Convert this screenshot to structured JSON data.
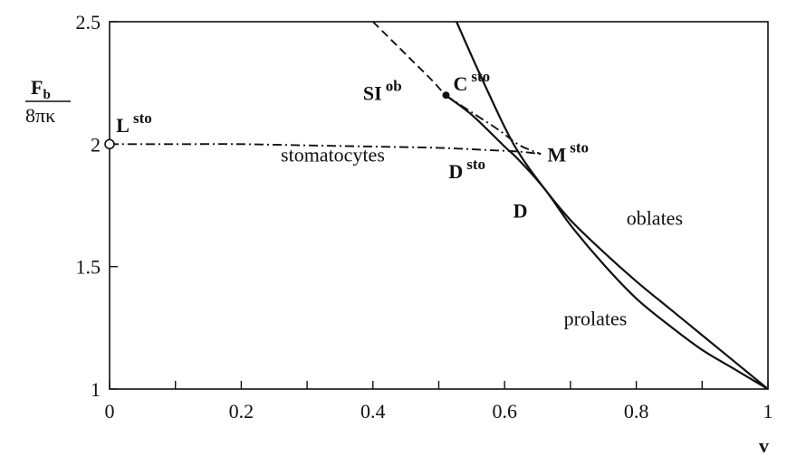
{
  "chart_data": {
    "type": "line",
    "xlabel": "v",
    "ylabel": {
      "numerator": "F",
      "numerator_sub": "b",
      "denominator": "8πκ"
    },
    "xlim": [
      0,
      1
    ],
    "ylim": [
      1,
      2.5
    ],
    "x_ticks": [
      {
        "value": 0,
        "label": "0"
      },
      {
        "value": 0.2,
        "label": "0.2"
      },
      {
        "value": 0.4,
        "label": "0.4"
      },
      {
        "value": 0.6,
        "label": "0.6"
      },
      {
        "value": 0.8,
        "label": "0.8"
      },
      {
        "value": 1,
        "label": "1"
      }
    ],
    "x_minor_ticks": [
      0.1,
      0.3,
      0.5,
      0.7,
      0.9
    ],
    "y_ticks": [
      {
        "value": 1,
        "label": "1"
      },
      {
        "value": 1.5,
        "label": "1.5"
      },
      {
        "value": 2,
        "label": "2"
      },
      {
        "value": 2.5,
        "label": "2.5"
      }
    ],
    "grid": false,
    "series": [
      {
        "name": "oblates",
        "style": "solid",
        "label_at": [
          0.785,
          1.67
        ],
        "points": [
          [
            0.527,
            2.5
          ],
          [
            0.56,
            2.3
          ],
          [
            0.6,
            2.07
          ],
          [
            0.625,
            1.95
          ],
          [
            0.66,
            1.82
          ],
          [
            0.7,
            1.69
          ],
          [
            0.75,
            1.56
          ],
          [
            0.8,
            1.44
          ],
          [
            0.85,
            1.33
          ],
          [
            0.9,
            1.22
          ],
          [
            0.95,
            1.11
          ],
          [
            1.0,
            1.0
          ]
        ]
      },
      {
        "name": "prolates",
        "style": "solid",
        "label_at": [
          0.69,
          1.26
        ],
        "points": [
          [
            0.51,
            2.2
          ],
          [
            0.55,
            2.12
          ],
          [
            0.6,
            1.99
          ],
          [
            0.62,
            1.94
          ],
          [
            0.66,
            1.82
          ],
          [
            0.7,
            1.67
          ],
          [
            0.75,
            1.51
          ],
          [
            0.8,
            1.37
          ],
          [
            0.85,
            1.26
          ],
          [
            0.9,
            1.16
          ],
          [
            0.95,
            1.08
          ],
          [
            1.0,
            1.0
          ]
        ]
      },
      {
        "name": "stomatocytes",
        "style": "dash-dot",
        "label_at": [
          0.26,
          1.93
        ],
        "points": [
          [
            0.0,
            2.0
          ],
          [
            0.1,
            2.0
          ],
          [
            0.2,
            2.0
          ],
          [
            0.3,
            1.995
          ],
          [
            0.4,
            1.99
          ],
          [
            0.5,
            1.985
          ],
          [
            0.58,
            1.975
          ],
          [
            0.62,
            1.97
          ],
          [
            0.655,
            1.96
          ]
        ]
      },
      {
        "name": "",
        "style": "dash-dot",
        "points": [
          [
            0.51,
            2.2
          ],
          [
            0.55,
            2.13
          ],
          [
            0.59,
            2.06
          ],
          [
            0.62,
            2.0
          ],
          [
            0.64,
            1.975
          ],
          [
            0.655,
            1.96
          ]
        ]
      },
      {
        "name": "",
        "style": "dashed",
        "points": [
          [
            0.4,
            2.5
          ],
          [
            0.43,
            2.42
          ],
          [
            0.46,
            2.34
          ],
          [
            0.49,
            2.26
          ],
          [
            0.51,
            2.2
          ]
        ]
      }
    ],
    "annotations": [
      {
        "text": "L",
        "sup": "sto",
        "at": [
          0.0,
          2.0
        ],
        "marker": "open-circle",
        "label_at": [
          0.01,
          2.05
        ]
      },
      {
        "text": "SI",
        "sup": "ob",
        "at": [
          0.507,
          2.23
        ],
        "marker": "none",
        "label_at": [
          0.385,
          2.18
        ]
      },
      {
        "text": "C",
        "sup": "sto",
        "at": [
          0.511,
          2.2
        ],
        "marker": "filled-circle",
        "label_at": [
          0.522,
          2.22
        ]
      },
      {
        "text": "M",
        "sup": "sto",
        "at": [
          0.655,
          1.96
        ],
        "marker": "none",
        "label_at": [
          0.665,
          1.93
        ]
      },
      {
        "text": "D",
        "sup": "sto",
        "at": [
          0.6,
          1.975
        ],
        "marker": "none",
        "label_at": [
          0.515,
          1.86
        ]
      },
      {
        "text": "D",
        "sup": "",
        "at": [
          0.662,
          1.82
        ],
        "marker": "none",
        "label_at": [
          0.613,
          1.7
        ]
      }
    ]
  }
}
